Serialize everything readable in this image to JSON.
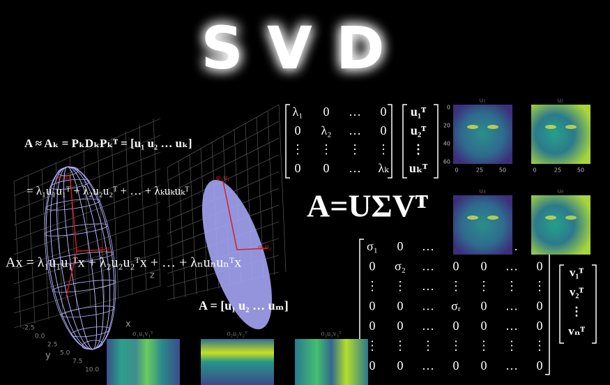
{
  "title": "SVD",
  "formulas": {
    "approximation": "A ≈ Aₖ = PₖDₖPₖᵀ = [u₁   u₂   …   uₖ]",
    "eigen_sum": "= λ₁u₁u₁ᵀ + λ₂u₂u₂ᵀ + … + λₖuₖuₖᵀ",
    "ax_expansion": "Ax = λ₁u₁u₁ᵀx + λ₂u₂u₂ᵀx + … + λₙuₙuₙᵀx",
    "u_matrix": "A = [u₁   u₂   …   uₘ]",
    "svd": "A=UΣVᵀ"
  },
  "lambda_matrix": [
    [
      "λ₁",
      "0",
      "…",
      "0"
    ],
    [
      "0",
      "λ₂",
      "…",
      "0"
    ],
    [
      "⋮",
      "⋮",
      "⋮",
      "⋮"
    ],
    [
      "0",
      "0",
      "…",
      "λₖ"
    ]
  ],
  "u_transpose_column": [
    "u₁ᵀ",
    "u₂ᵀ",
    "⋮",
    "uₖᵀ"
  ],
  "sigma_matrix": [
    [
      "σ₁",
      "0",
      "…",
      "0",
      "0",
      "…",
      "0"
    ],
    [
      "0",
      "σ₂",
      "…",
      "0",
      "0",
      "…",
      "0"
    ],
    [
      "⋮",
      "⋮",
      "…",
      "⋮",
      "⋮",
      "⋮",
      "⋮"
    ],
    [
      "0",
      "0",
      "…",
      "σᵣ",
      "0",
      "…",
      "0"
    ],
    [
      "0",
      "0",
      "…",
      "0",
      "0",
      "…",
      "0"
    ],
    [
      "⋮",
      "⋮",
      "⋮",
      "⋮",
      "⋮",
      "⋮",
      "⋮"
    ],
    [
      "0",
      "0",
      "…",
      "0",
      "0",
      "…",
      "0"
    ]
  ],
  "v_transpose_column": [
    "v₁ᵀ",
    "v₂ᵀ",
    "⋮",
    "vₙᵀ"
  ],
  "face_panels": [
    "u₁",
    "u₂",
    "u₃",
    "u₆"
  ],
  "face_x_ticks": [
    "0",
    "25",
    "50"
  ],
  "face_y_ticks": [
    "0",
    "20",
    "40",
    "60"
  ],
  "mode_panels": [
    "σ₁u₁v₁ᵀ",
    "σ₂u₂v₂ᵀ",
    "σ₃u₃v₃ᵀ"
  ],
  "plot_vectors": [
    "σ₁u₁",
    "σ₂u₂",
    "φ₁u₁",
    "φ₂u₂"
  ],
  "plot_axis_ticks": [
    "-2.5",
    "0.0",
    "2.5",
    "5.0",
    "7.5",
    "10.0"
  ],
  "plot_axis_labels": [
    "x",
    "y",
    "z"
  ]
}
